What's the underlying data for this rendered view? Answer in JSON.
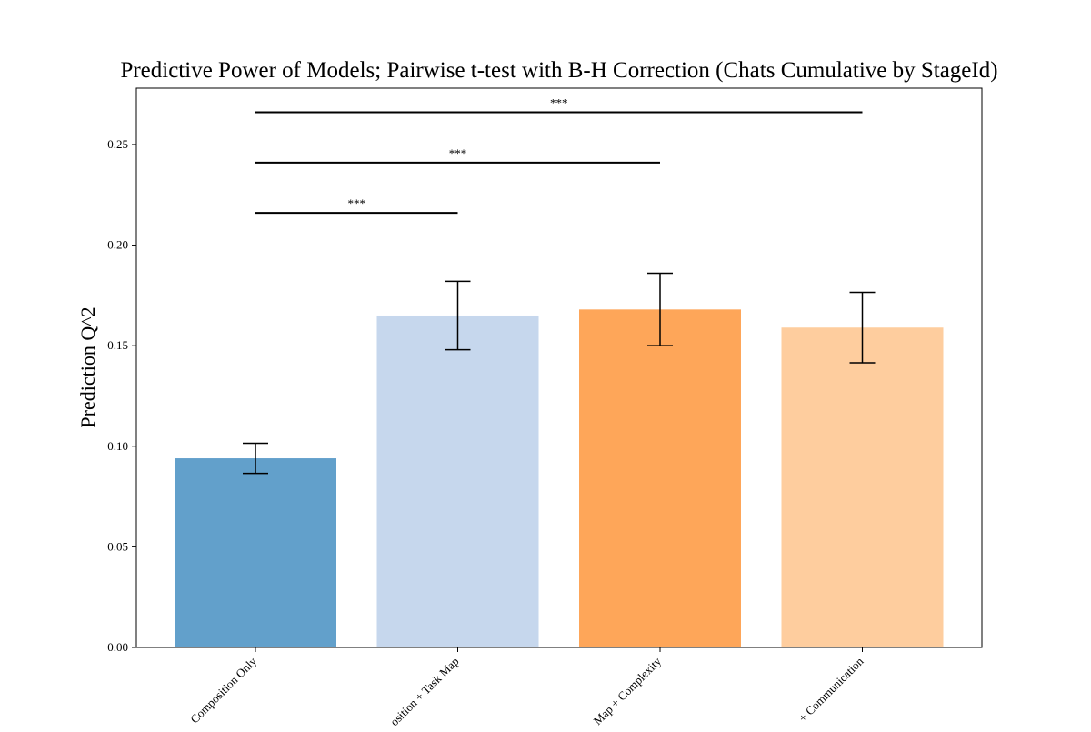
{
  "chart_data": {
    "type": "bar",
    "title": "Predictive Power of Models; Pairwise t-test with B-H Correction (Chats Cumulative by StageId)",
    "xlabel": "",
    "ylabel": "Prediction Q^2",
    "ylim": [
      0,
      0.278
    ],
    "yticks": [
      "0.00",
      "0.05",
      "0.10",
      "0.15",
      "0.20",
      "0.25"
    ],
    "categories": [
      "Composition Only",
      "osition + Task Map",
      "Map + Complexity",
      "+ Communication"
    ],
    "values": [
      0.094,
      0.165,
      0.168,
      0.159
    ],
    "errors": [
      0.0075,
      0.017,
      0.018,
      0.0175
    ],
    "colors": [
      "#62a0cb",
      "#c6d7ed",
      "#fea659",
      "#fecd9e"
    ],
    "grid": false,
    "significance": [
      {
        "from": 0,
        "to": 1,
        "y": 0.216,
        "label": "***"
      },
      {
        "from": 0,
        "to": 2,
        "y": 0.241,
        "label": "***"
      },
      {
        "from": 0,
        "to": 3,
        "y": 0.266,
        "label": "***"
      }
    ]
  }
}
